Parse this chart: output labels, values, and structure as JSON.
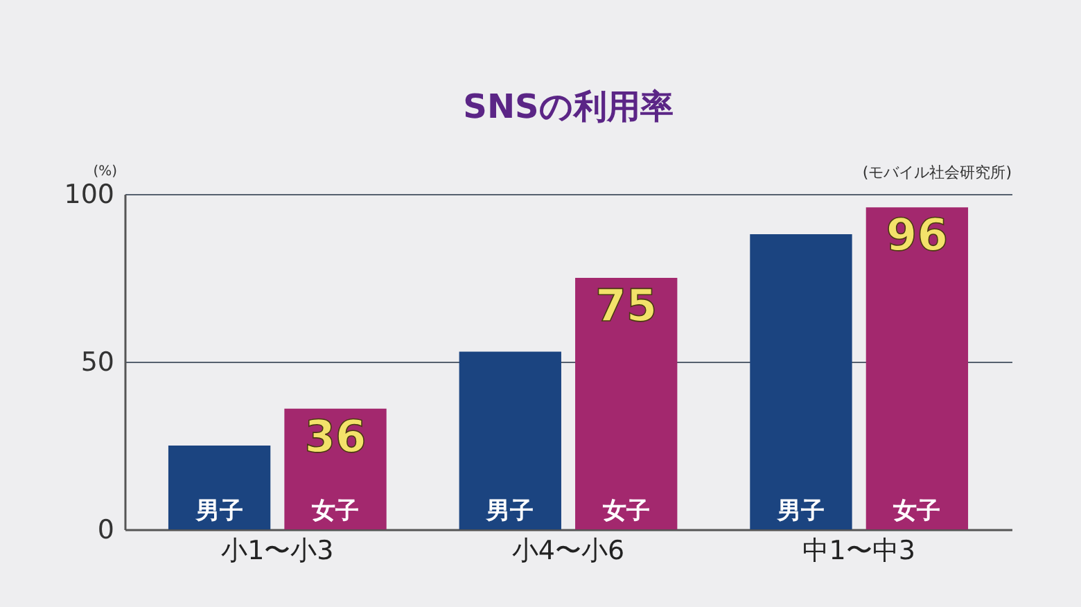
{
  "chart_data": {
    "type": "bar",
    "title": "SNSの利用率",
    "ylabel": "(%)",
    "annotations": [
      "(モバイル社会研究所)"
    ],
    "categories": [
      "小1〜小3",
      "小4〜小6",
      "中1〜中3"
    ],
    "series": [
      {
        "name": "男子",
        "color": "#1b4480",
        "values": [
          25,
          53,
          88
        ],
        "value_labels": [
          null,
          null,
          null
        ]
      },
      {
        "name": "女子",
        "color": "#a3286e",
        "values": [
          36,
          75,
          96
        ],
        "value_labels": [
          "36",
          "75",
          "96"
        ]
      }
    ],
    "ylim": [
      0,
      100
    ],
    "yticks": [
      0,
      50,
      100
    ],
    "grid": "y"
  }
}
